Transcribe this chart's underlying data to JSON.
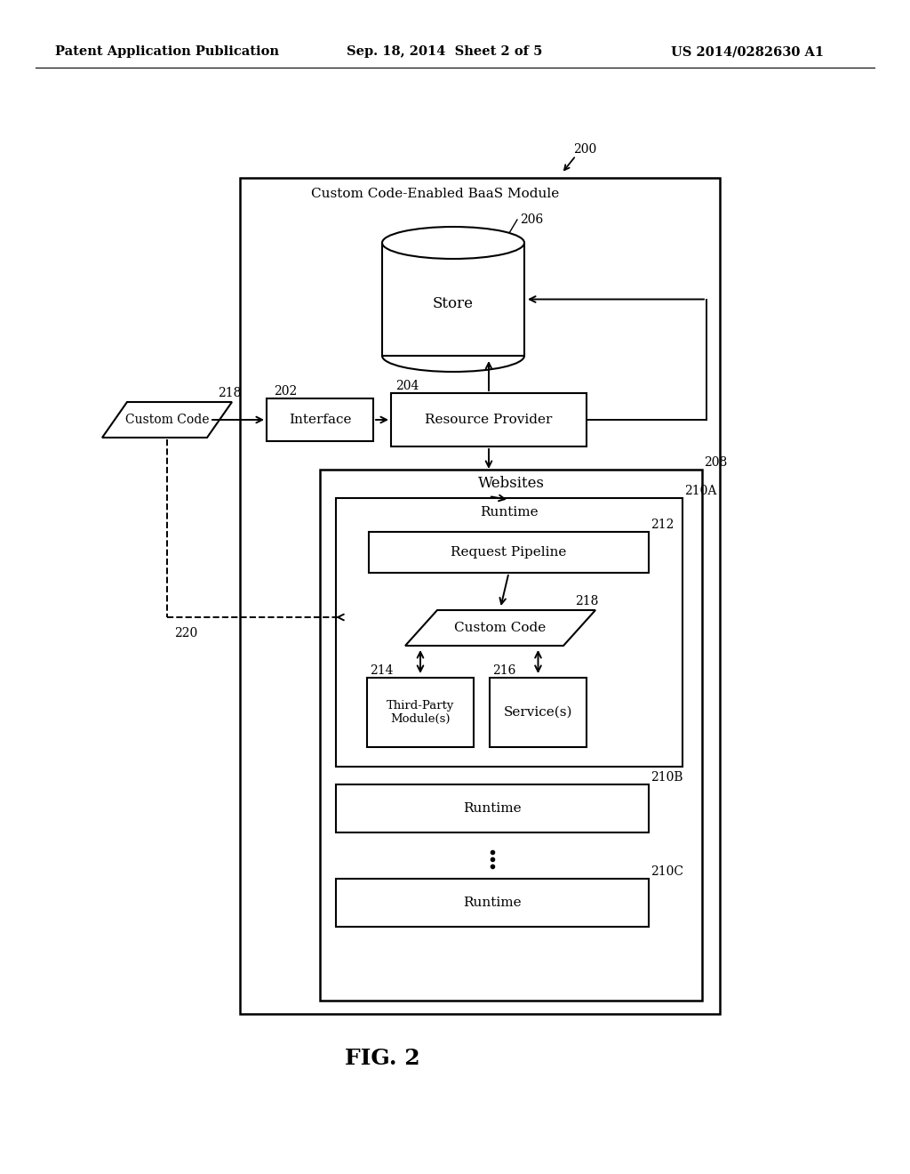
{
  "bg_color": "#ffffff",
  "header_left": "Patent Application Publication",
  "header_mid": "Sep. 18, 2014  Sheet 2 of 5",
  "header_right": "US 2014/0282630 A1",
  "fig_label": "FIG. 2",
  "label_200": "200",
  "label_baas": "Custom Code-Enabled BaaS Module",
  "label_206": "206",
  "label_store": "Store",
  "label_202": "202",
  "label_interface": "Interface",
  "label_204": "204",
  "label_resource": "Resource Provider",
  "label_218_out": "218",
  "label_customcode_out": "Custom Code",
  "label_220": "220",
  "label_208": "208",
  "label_websites": "Websites",
  "label_210A": "210A",
  "label_runtime_A": "Runtime",
  "label_212": "212",
  "label_pipeline": "Request Pipeline",
  "label_218_in": "218",
  "label_customcode_in": "Custom Code",
  "label_214": "214",
  "label_thirdparty": "Third-Party\nModule(s)",
  "label_216": "216",
  "label_services": "Service(s)",
  "label_210B": "210B",
  "label_runtime_B": "Runtime",
  "label_210C": "210C",
  "label_runtime_C": "Runtime",
  "line_color": "#000000",
  "text_color": "#000000"
}
